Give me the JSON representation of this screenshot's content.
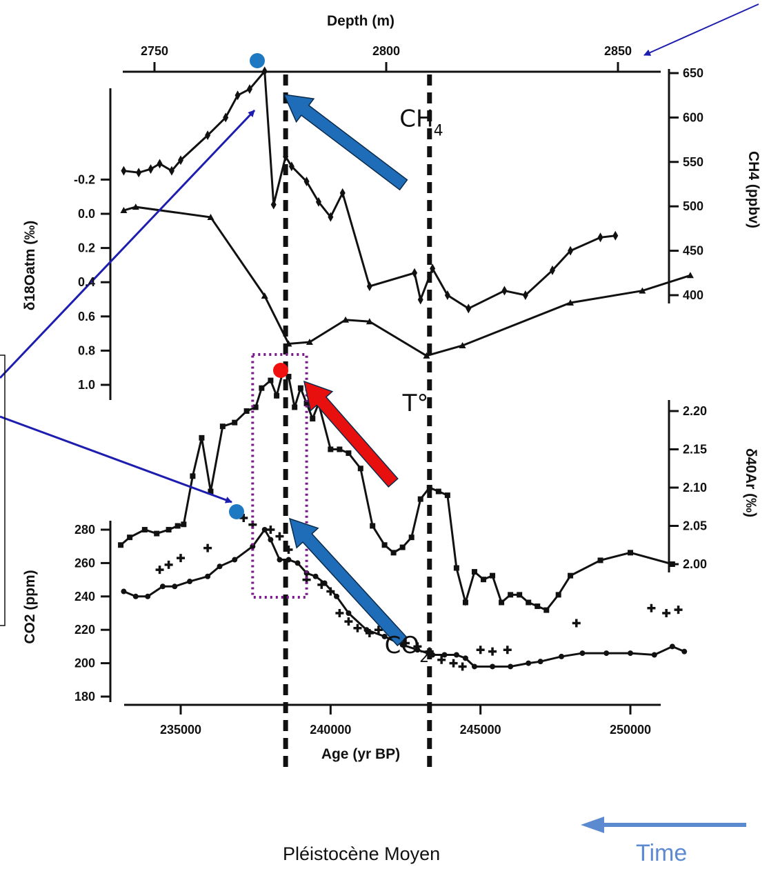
{
  "chart_data": {
    "type": "line",
    "xlabel": "Age (yr BP)",
    "x_ticks": [
      235000,
      240000,
      245000,
      250000
    ],
    "xlim": [
      233000,
      252000
    ],
    "top_axis": {
      "label": "Depth (m)",
      "ticks": [
        2750,
        2800,
        2850
      ],
      "xlim": [
        2741,
        2860
      ]
    },
    "left_upper_axis": {
      "label": "δ18Oatm (‰)",
      "ticks": [
        "-0.2",
        "0.0",
        "0.2",
        "0.4",
        "0.6",
        "0.8",
        "1.0"
      ],
      "tick_values": [
        -0.2,
        0.0,
        0.2,
        0.4,
        0.6,
        0.8,
        1.0
      ],
      "inverted": true
    },
    "left_lower_axis": {
      "label": "CO2 (ppm)",
      "ticks": [
        "180",
        "200",
        "220",
        "240",
        "260",
        "280"
      ],
      "tick_values": [
        180,
        200,
        220,
        240,
        260,
        280
      ]
    },
    "right_upper_axis": {
      "label": "CH4 (ppbv)",
      "ticks": [
        "400",
        "450",
        "500",
        "550",
        "600",
        "650"
      ],
      "tick_values": [
        400,
        450,
        500,
        550,
        600,
        650
      ]
    },
    "right_lower_axis": {
      "label": "δ40Ar (‰)",
      "ticks": [
        "2.00",
        "2.05",
        "2.10",
        "2.15",
        "2.20"
      ],
      "tick_values": [
        2.0,
        2.05,
        2.1,
        2.15,
        2.2
      ]
    },
    "series": [
      {
        "name": "CH4",
        "axis": "right_upper",
        "marker": "diamond",
        "x": [
          233100,
          233600,
          234000,
          234300,
          234700,
          235000,
          235900,
          236500,
          236900,
          237300,
          237800,
          238100,
          238500,
          238700,
          239200,
          239600,
          240000,
          240400,
          241300,
          242800,
          243000,
          243400,
          243900,
          244600,
          245800,
          246500,
          247400,
          248000,
          249000,
          249500
        ],
        "y": [
          540,
          538,
          542,
          548,
          540,
          552,
          580,
          600,
          625,
          632,
          652,
          502,
          556,
          545,
          528,
          505,
          488,
          515,
          410,
          425,
          395,
          430,
          400,
          385,
          405,
          400,
          428,
          450,
          465,
          467
        ]
      },
      {
        "name": "δ18Oatm",
        "axis": "left_upper",
        "marker": "triangle",
        "x": [
          233100,
          233500,
          236000,
          237800,
          238600,
          239300,
          240500,
          241300,
          243200,
          244400,
          248000,
          250400,
          252000
        ],
        "y": [
          -0.02,
          -0.04,
          0.02,
          0.48,
          0.76,
          0.75,
          0.62,
          0.63,
          0.83,
          0.77,
          0.52,
          0.45,
          0.36
        ]
      },
      {
        "name": "δ40Ar",
        "axis": "right_lower",
        "marker": "square",
        "x": [
          233000,
          233300,
          233800,
          234200,
          234600,
          234900,
          235100,
          235400,
          235700,
          236000,
          236400,
          236800,
          237200,
          237500,
          237700,
          238000,
          238200,
          238400,
          238600,
          238800,
          239000,
          239200,
          239400,
          239600,
          240000,
          240300,
          240600,
          241000,
          241400,
          241800,
          242100,
          242400,
          242700,
          243000,
          243300,
          243600,
          243900,
          244200,
          244500,
          244800,
          245100,
          245400,
          245700,
          246000,
          246300,
          246600,
          246900,
          247200,
          247600,
          248000,
          249000,
          250000,
          251400
        ],
        "y": [
          2.025,
          2.035,
          2.045,
          2.04,
          2.045,
          2.05,
          2.052,
          2.115,
          2.165,
          2.095,
          2.18,
          2.185,
          2.2,
          2.205,
          2.23,
          2.24,
          2.22,
          2.25,
          2.245,
          2.205,
          2.23,
          2.21,
          2.19,
          2.21,
          2.15,
          2.15,
          2.145,
          2.125,
          2.05,
          2.025,
          2.015,
          2.022,
          2.035,
          2.085,
          2.1,
          2.095,
          2.09,
          1.995,
          1.95,
          1.99,
          1.98,
          1.985,
          1.95,
          1.96,
          1.96,
          1.95,
          1.945,
          1.94,
          1.96,
          1.985,
          2.005,
          2.015,
          2.0
        ]
      },
      {
        "name": "CO2",
        "axis": "left_lower",
        "marker": "circle",
        "x": [
          233100,
          233500,
          233900,
          234400,
          234800,
          235300,
          235900,
          236300,
          236800,
          237400,
          237800,
          238000,
          238300,
          238600,
          238900,
          239200,
          239500,
          239800,
          240200,
          240600,
          241200,
          241800,
          242400,
          242900,
          243400,
          243800,
          244200,
          244500,
          244800,
          245400,
          246000,
          246600,
          247000,
          247700,
          248400,
          249200,
          250000,
          250800,
          251400,
          251800
        ],
        "y": [
          243,
          240,
          240,
          246,
          246,
          249,
          252,
          258,
          262,
          270,
          280,
          274,
          262,
          262,
          260,
          254,
          252,
          248,
          240,
          230,
          220,
          216,
          211,
          208,
          205,
          205,
          205,
          203,
          198,
          198,
          198,
          200,
          201,
          204,
          206,
          206,
          206,
          205,
          210,
          207
        ]
      },
      {
        "name": "CO2 (+)",
        "axis": "left_lower",
        "marker": "plus",
        "x": [
          234300,
          234600,
          235000,
          235900,
          236900,
          237100,
          237400,
          238000,
          238300,
          238600,
          239200,
          239700,
          240000,
          240300,
          240600,
          240900,
          241300,
          241600,
          242100,
          242500,
          242900,
          243300,
          243700,
          244100,
          244400,
          245000,
          245400,
          245900,
          248200,
          250700,
          251200,
          251600
        ],
        "y": [
          256,
          259,
          263,
          269,
          289,
          287,
          283,
          280,
          276,
          268,
          250,
          247,
          243,
          230,
          225,
          221,
          218,
          220,
          216,
          212,
          210,
          207,
          202,
          200,
          198,
          208,
          207,
          208,
          224,
          233,
          230,
          232
        ]
      }
    ],
    "annotations": [
      {
        "text": "CH4",
        "at": [
          242300,
          590
        ],
        "axis": "right_upper"
      },
      {
        "text": "T°",
        "at": [
          242400,
          2.2
        ],
        "axis": "right_lower"
      },
      {
        "text": "CO2",
        "at": [
          241800,
          206
        ],
        "axis": "left_lower"
      }
    ],
    "reference_lines_x": [
      238500,
      243300
    ],
    "highlight_box_x": [
      237400,
      239200
    ],
    "grid": false,
    "colors": {
      "arrow_blue": "#1f6db8",
      "arrow_red": "#e8100f",
      "dot_blue": "#1f78c2",
      "dot_red": "#f01010",
      "navy_arrow": "#1d1daf",
      "box_purple": "#7a1a8a",
      "time_arrow": "#5b8ad0"
    }
  },
  "footer": {
    "period_label": "Pléistocène Moyen",
    "time_label": "Time"
  }
}
